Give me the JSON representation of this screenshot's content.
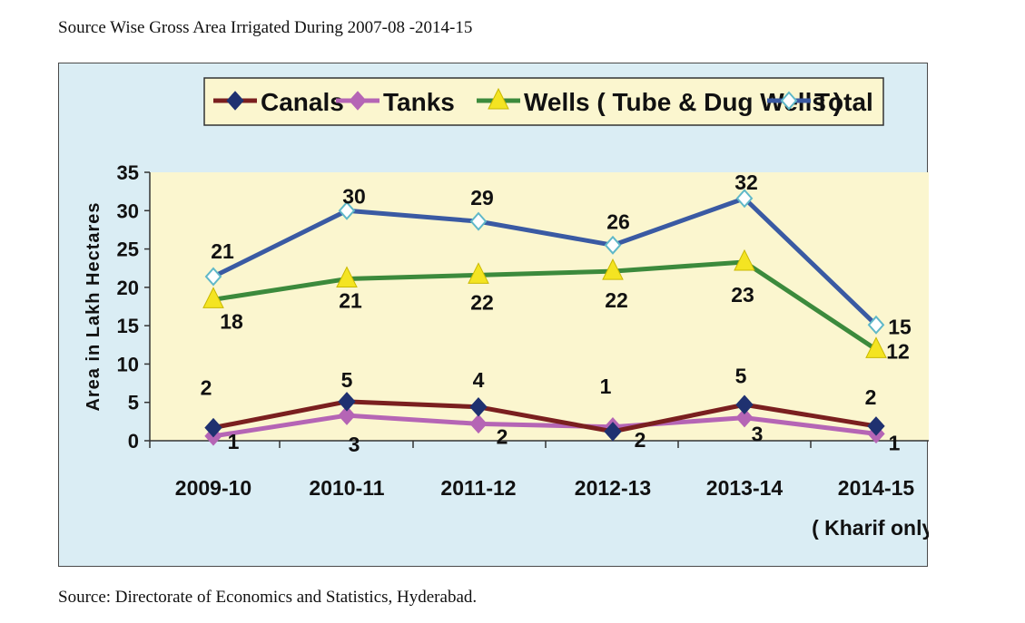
{
  "page": {
    "title": "Source Wise Gross Area Irrigated During 2007-08 -2014-15",
    "source": "Source: Directorate of Economics and Statistics, Hyderabad."
  },
  "chart_data": {
    "type": "line",
    "title": "",
    "xlabel": "",
    "ylabel": "Area in Lakh Hectares",
    "ylim": [
      0,
      35
    ],
    "yticks": [
      0,
      5,
      10,
      15,
      20,
      25,
      30,
      35
    ],
    "categories": [
      "2009-10",
      "2010-11",
      "2011-12",
      "2012-13",
      "2013-14",
      "2014-15"
    ],
    "category_note": "( Kharif only)",
    "legend_position": "top",
    "grid": false,
    "colors": {
      "frame_bg": "#daedf4",
      "plot_bg": "#fbf6cf",
      "legend_bg": "#fbf6cf"
    },
    "series": [
      {
        "name": "Canals",
        "color": "#7a1f1f",
        "marker": "diamond-filled",
        "marker_color": "#1f3170",
        "values": [
          1.7,
          5.1,
          4.4,
          1.2,
          4.7,
          1.9
        ],
        "labels": [
          "2",
          "5",
          "4",
          "1",
          "5",
          "2"
        ]
      },
      {
        "name": "Tanks",
        "color": "#b565b5",
        "marker": "diamond-filled",
        "marker_color": "#b565b5",
        "values": [
          0.6,
          3.3,
          2.2,
          1.8,
          3.0,
          0.9
        ],
        "labels": [
          "1",
          "3",
          "2",
          "2",
          "3",
          "1"
        ]
      },
      {
        "name": "Wells ( Tube & Dug Wells )",
        "color": "#3c8a3c",
        "marker": "triangle",
        "marker_color": "#f4e422",
        "values": [
          18.4,
          21.1,
          21.6,
          22.1,
          23.3,
          11.9
        ],
        "labels": [
          "18",
          "21",
          "22",
          "22",
          "23",
          "12"
        ]
      },
      {
        "name": "Total",
        "color": "#3a5aa3",
        "marker": "diamond-open",
        "marker_color": "#5fb8c8",
        "values": [
          21.4,
          30.0,
          28.6,
          25.5,
          31.6,
          15.1
        ],
        "labels": [
          "21",
          "30",
          "29",
          "26",
          "32",
          "15"
        ]
      }
    ]
  }
}
